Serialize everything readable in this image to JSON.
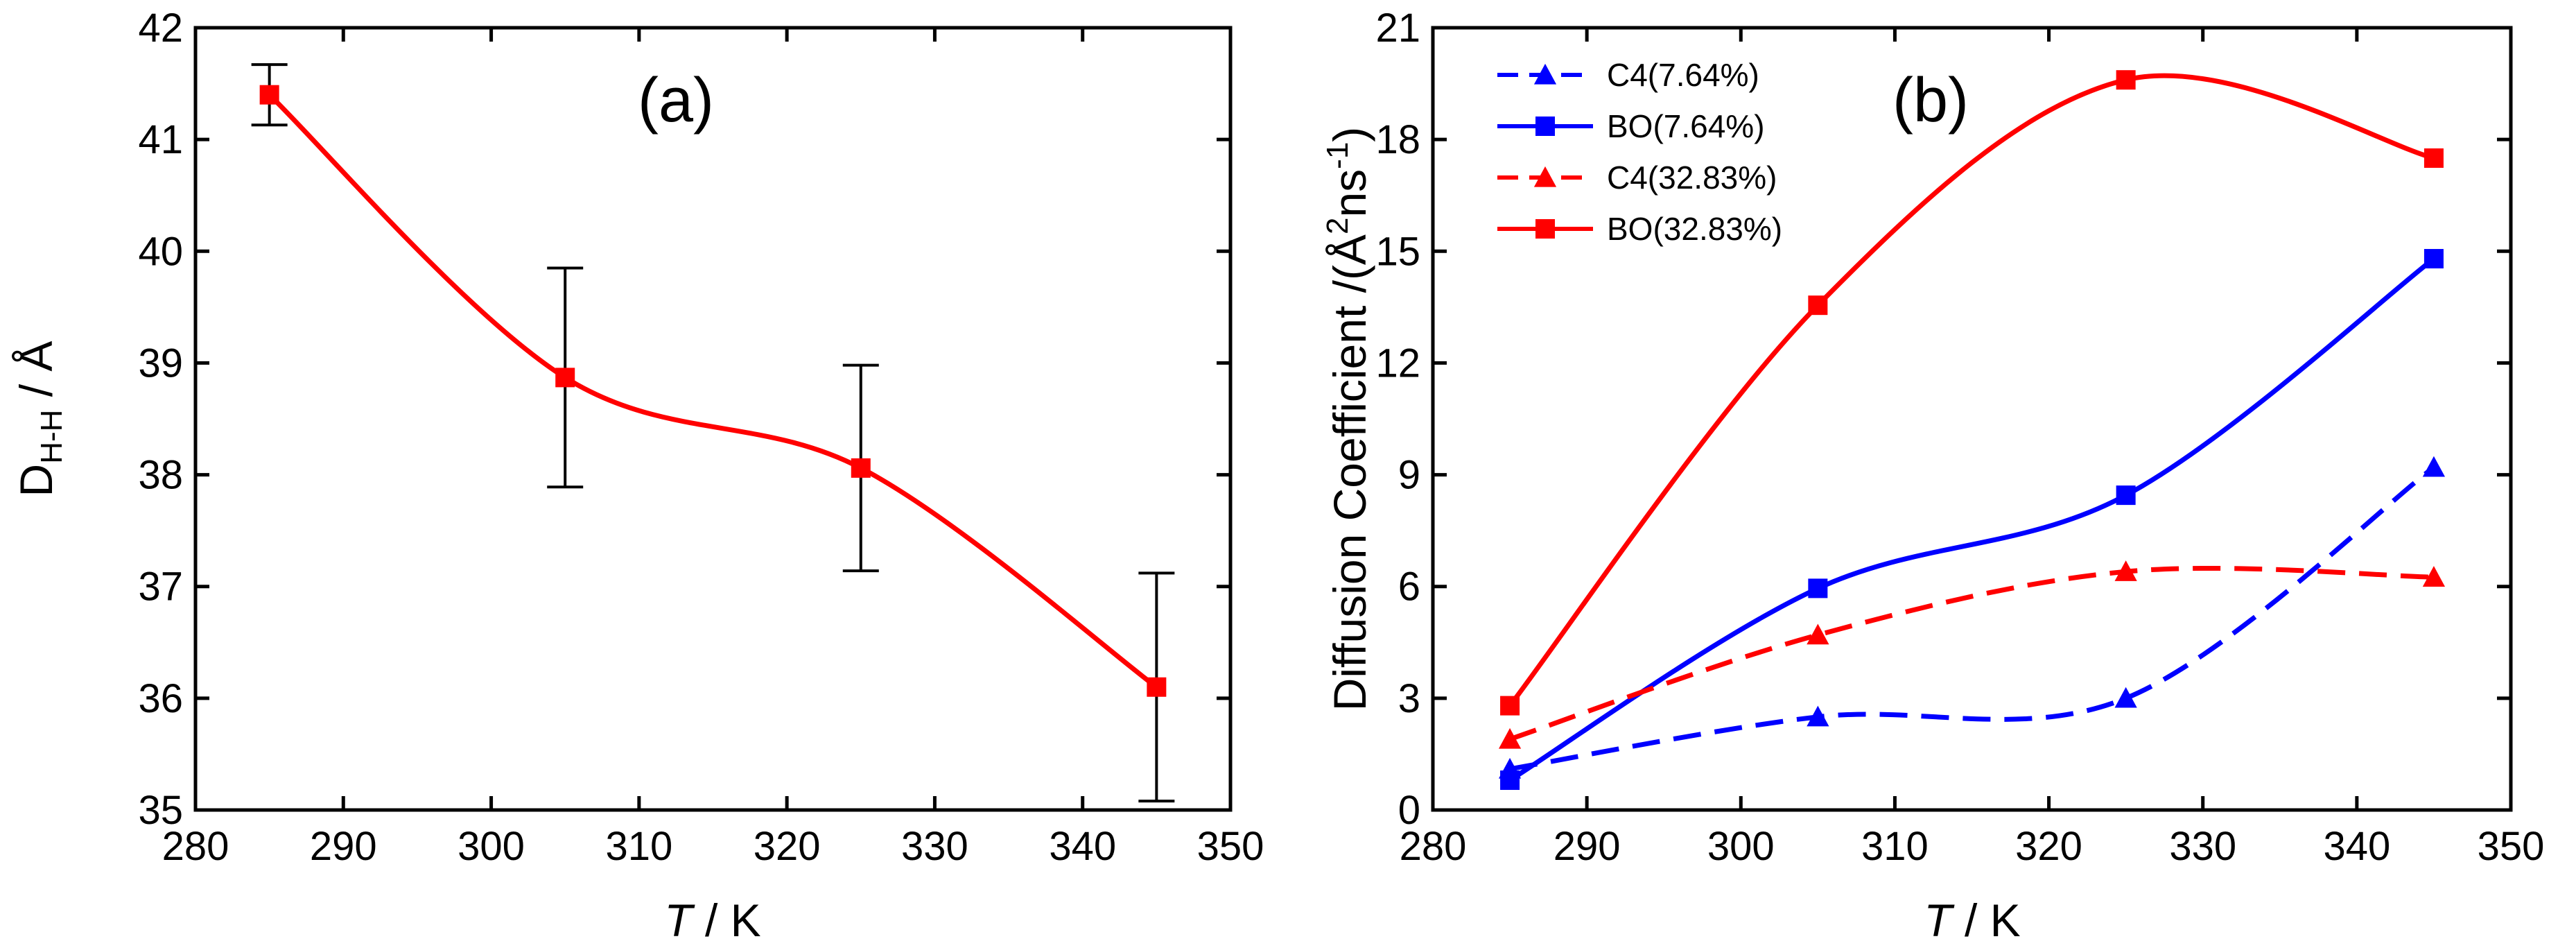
{
  "chart_data": [
    {
      "panel_label": "(a)",
      "type": "line",
      "title": "",
      "xlabel": {
        "italic": "T",
        "rest": " / K"
      },
      "ylabel": {
        "main": "D",
        "sub": "H-H",
        "rest": " / Å"
      },
      "xlim": [
        280,
        350
      ],
      "ylim": [
        35,
        42
      ],
      "xticks": [
        280,
        290,
        300,
        310,
        320,
        330,
        340,
        350
      ],
      "yticks": [
        35,
        36,
        37,
        38,
        39,
        40,
        41,
        42
      ],
      "grid": false,
      "series": [
        {
          "x": [
            285,
            305,
            325,
            345
          ],
          "y": [
            41.4,
            38.87,
            38.06,
            36.1
          ],
          "error": [
            0.27,
            0.98,
            0.92,
            1.02
          ],
          "color": "#ff0000",
          "marker": "square",
          "line": "solid-smooth"
        }
      ]
    },
    {
      "panel_label": "(b)",
      "type": "line",
      "title": "",
      "xlabel": {
        "italic": "T",
        "rest": " / K"
      },
      "ylabel": {
        "main": "Diffusion Coefficient /(",
        "unit": "Å",
        "sup1": "2",
        "mid": "ns",
        "sup2": "-1",
        "end": ")"
      },
      "xlim": [
        280,
        350
      ],
      "ylim": [
        0,
        21
      ],
      "xticks": [
        280,
        290,
        300,
        310,
        320,
        330,
        340,
        350
      ],
      "yticks": [
        0,
        3,
        6,
        9,
        12,
        15,
        18,
        21
      ],
      "grid": false,
      "legend_position": "top-left",
      "series": [
        {
          "name": "C4(7.64%)",
          "x": [
            285,
            305,
            325,
            345
          ],
          "y": [
            1.1,
            2.5,
            3.0,
            9.2
          ],
          "color": "#0000ff",
          "marker": "triangle",
          "line": "dashed"
        },
        {
          "name": "BO(7.64%)",
          "x": [
            285,
            305,
            325,
            345
          ],
          "y": [
            0.8,
            5.95,
            8.45,
            14.8
          ],
          "color": "#0000ff",
          "marker": "square",
          "line": "solid"
        },
        {
          "name": "C4(32.83%)",
          "x": [
            285,
            305,
            325,
            345
          ],
          "y": [
            1.9,
            4.7,
            6.4,
            6.25
          ],
          "color": "#ff0000",
          "marker": "triangle",
          "line": "dashed"
        },
        {
          "name": "BO(32.83%)",
          "x": [
            285,
            305,
            325,
            345
          ],
          "y": [
            2.8,
            13.55,
            19.6,
            17.5
          ],
          "color": "#ff0000",
          "marker": "square",
          "line": "solid"
        }
      ]
    }
  ]
}
